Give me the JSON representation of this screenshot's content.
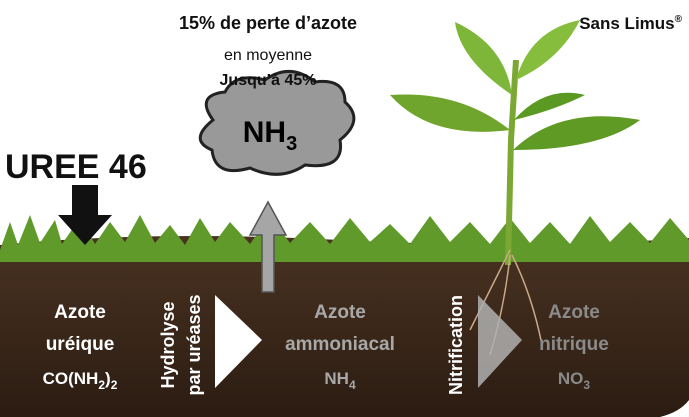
{
  "header": {
    "loss": "15% de perte d’azote",
    "average": "en moyenne",
    "max": "Jusqu’à 45%",
    "brand": "Sans Limus",
    "brand_mark": "®"
  },
  "product": "UREE 46",
  "cloud": {
    "formula": [
      "NH",
      "3"
    ]
  },
  "stages": [
    {
      "lines": [
        "Azote",
        "uréique"
      ],
      "formula": [
        "CO(NH",
        "2",
        ")",
        "2"
      ]
    },
    {
      "lines": [
        "Hydrolyse",
        "par uréases"
      ]
    },
    {
      "lines": [
        "Azote",
        "ammoniacal"
      ],
      "formula": [
        "NH",
        "4"
      ]
    },
    {
      "lines": [
        "Nitrification"
      ]
    },
    {
      "lines": [
        "Azote",
        "nitrique"
      ],
      "formula": [
        "NO",
        "3"
      ]
    }
  ]
}
